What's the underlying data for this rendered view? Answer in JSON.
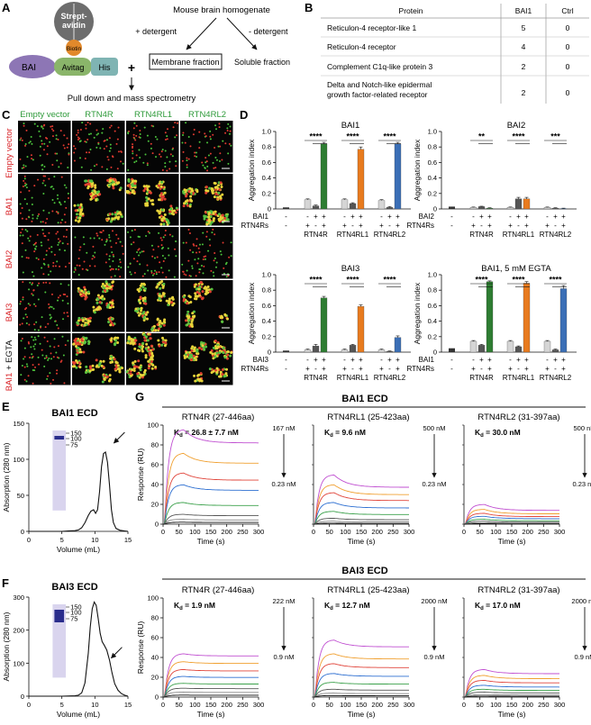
{
  "panel_letters": {
    "A": "A",
    "B": "B",
    "C": "C",
    "D": "D",
    "E": "E",
    "F": "F",
    "G": "G"
  },
  "panelA": {
    "streptavidin": "Strept-avidin",
    "biotin": "Biotin",
    "bai": "BAI",
    "avitag": "Avitag",
    "his": "His",
    "plus": "+",
    "homogenate": "Mouse brain homogenate",
    "plus_detergent": "+ detergent",
    "minus_detergent": "- detergent",
    "membrane": "Membrane fraction",
    "soluble": "Soluble fraction",
    "pulldown": "Pull down and mass spectrometry"
  },
  "panelB": {
    "headers": [
      "Protein",
      "BAI1",
      "Ctrl"
    ],
    "rows": [
      {
        "protein": "Reticulon-4 receptor-like 1",
        "bai1": "5",
        "ctrl": "0"
      },
      {
        "protein": "Reticulon-4 receptor",
        "bai1": "4",
        "ctrl": "0"
      },
      {
        "protein": "Complement C1q-like protein 3",
        "bai1": "2",
        "ctrl": "0"
      },
      {
        "protein_line1": "Delta and Notch-like epidermal",
        "protein_line2": "growth factor-related receptor",
        "bai1": "2",
        "ctrl": "0"
      }
    ]
  },
  "panelC": {
    "col_labels": [
      "Empty vector",
      "RTN4R",
      "RTN4RL1",
      "RTN4RL2"
    ],
    "row_labels": [
      "Empty vector",
      "BAI1",
      "BAI2",
      "BAI3"
    ],
    "last_row_red": "BAI1",
    "last_row_white": " + EGTA",
    "colors": {
      "red": "#d9252a",
      "green": "#2e9a3a"
    }
  },
  "panelD": {
    "ylabel": "Aggregation index",
    "groups": [
      "RTN4R",
      "RTN4RL1",
      "RTN4RL2"
    ],
    "rtn_row_label": "RTN4Rs",
    "colors": {
      "gray": "#d5d5d5",
      "dark": "#555555",
      "RTN4R": "#2e7d32",
      "RTN4RL1": "#e87b1e",
      "RTN4RL2": "#3b6fb6"
    },
    "chart_data": [
      {
        "type": "bar",
        "title": "BAI1",
        "row_label": "BAI1",
        "ylim": [
          0,
          1.0
        ],
        "yticks": [
          "0",
          "0.2",
          "0.4",
          "0.6",
          "0.8",
          "1.0"
        ],
        "control": {
          "value": 0.02,
          "error": 0.01
        },
        "groups": [
          {
            "name": "RTN4R",
            "values": [
              0.12,
              0.04,
              0.84
            ],
            "errors": [
              0.01,
              0.01,
              0.02
            ]
          },
          {
            "name": "RTN4RL1",
            "values": [
              0.12,
              0.07,
              0.77
            ],
            "errors": [
              0.01,
              0.01,
              0.03
            ]
          },
          {
            "name": "RTN4RL2",
            "values": [
              0.11,
              0.02,
              0.84
            ],
            "errors": [
              0.01,
              0.01,
              0.02
            ]
          }
        ],
        "significance": [
          "****",
          "****",
          "****"
        ]
      },
      {
        "type": "bar",
        "title": "BAI2",
        "row_label": "BAI2",
        "ylim": [
          0,
          1.0
        ],
        "yticks": [
          "0",
          "0.2",
          "0.4",
          "0.6",
          "0.8",
          "1.0"
        ],
        "control": {
          "value": 0.03,
          "error": 0.01
        },
        "groups": [
          {
            "name": "RTN4R",
            "values": [
              0.02,
              0.03,
              0.01
            ],
            "errors": [
              0.005,
              0.005,
              0.005
            ]
          },
          {
            "name": "RTN4RL1",
            "values": [
              0.02,
              0.13,
              0.13
            ],
            "errors": [
              0.005,
              0.02,
              0.02
            ]
          },
          {
            "name": "RTN4RL2",
            "values": [
              0.02,
              0.01,
              0.005
            ],
            "errors": [
              0.005,
              0.005,
              0.005
            ]
          }
        ],
        "significance": [
          "**",
          "****",
          "***"
        ]
      },
      {
        "type": "bar",
        "title": "BAI3",
        "row_label": "BAI3",
        "ylim": [
          0,
          1.0
        ],
        "yticks": [
          "0",
          "0.2",
          "0.4",
          "0.6",
          "0.8",
          "1.0"
        ],
        "control": {
          "value": 0.02,
          "error": 0.01
        },
        "groups": [
          {
            "name": "RTN4R",
            "values": [
              0.03,
              0.08,
              0.7
            ],
            "errors": [
              0.01,
              0.02,
              0.02
            ]
          },
          {
            "name": "RTN4RL1",
            "values": [
              0.03,
              0.09,
              0.59
            ],
            "errors": [
              0.01,
              0.01,
              0.02
            ]
          },
          {
            "name": "RTN4RL2",
            "values": [
              0.03,
              0.01,
              0.19
            ],
            "errors": [
              0.01,
              0.005,
              0.02
            ]
          }
        ],
        "significance": [
          "****",
          "****",
          "****"
        ]
      },
      {
        "type": "bar",
        "title": "BAI1, 5 mM EGTA",
        "row_label": "BAI1",
        "ylim": [
          0,
          1.0
        ],
        "yticks": [
          "0",
          "0.2",
          "0.4",
          "0.6",
          "0.8",
          "1.0"
        ],
        "control": {
          "value": 0.05,
          "error": 0.01
        },
        "groups": [
          {
            "name": "RTN4R",
            "values": [
              0.14,
              0.09,
              0.91
            ],
            "errors": [
              0.01,
              0.01,
              0.01
            ]
          },
          {
            "name": "RTN4RL1",
            "values": [
              0.14,
              0.07,
              0.89
            ],
            "errors": [
              0.01,
              0.01,
              0.02
            ]
          },
          {
            "name": "RTN4RL2",
            "values": [
              0.14,
              0.03,
              0.82
            ],
            "errors": [
              0.01,
              0.01,
              0.04
            ]
          }
        ],
        "significance": [
          "****",
          "****",
          "****"
        ]
      }
    ]
  },
  "panelE": {
    "title": "BAI1 ECD",
    "ylabel": "Absorption (280 nm)",
    "xlabel": "Volume (mL)",
    "markers": [
      "150",
      "100",
      "75"
    ],
    "chart_data": {
      "type": "line",
      "xlim": [
        0,
        15
      ],
      "ylim": [
        0,
        150
      ],
      "xticks": [
        "0",
        "5",
        "10",
        "15"
      ],
      "yticks": [
        "0",
        "50",
        "100",
        "150"
      ],
      "x": [
        0,
        1,
        2,
        3,
        4,
        5,
        6,
        7,
        7.5,
        8,
        8.5,
        9,
        9.4,
        9.8,
        10.1,
        10.4,
        10.7,
        11.0,
        11.3,
        11.6,
        11.9,
        12.2,
        12.5,
        12.8,
        13.2,
        13.8,
        14.5,
        15
      ],
      "y": [
        0,
        0,
        0,
        0,
        0,
        0,
        0.5,
        1,
        2,
        5,
        12,
        22,
        28,
        30,
        25,
        30,
        55,
        90,
        108,
        110,
        96,
        65,
        30,
        12,
        4,
        1.5,
        0.5,
        0
      ]
    }
  },
  "panelF": {
    "title": "BAI3 ECD",
    "ylabel": "Absorption (280 nm)",
    "xlabel": "Volume (mL)",
    "markers": [
      "150",
      "100",
      "75"
    ],
    "chart_data": {
      "type": "line",
      "xlim": [
        0,
        15
      ],
      "ylim": [
        0,
        300
      ],
      "xticks": [
        "0",
        "5",
        "10",
        "15"
      ],
      "yticks": [
        "0",
        "100",
        "200",
        "300"
      ],
      "x": [
        0,
        1,
        2,
        3,
        4,
        5,
        6,
        7,
        7.5,
        8,
        8.5,
        9,
        9.3,
        9.6,
        9.9,
        10.2,
        10.5,
        10.8,
        11.1,
        11.4,
        11.8,
        12.2,
        12.6,
        13.0,
        13.5,
        14,
        14.5,
        15
      ],
      "y": [
        0,
        0,
        0,
        0,
        0,
        0,
        0.5,
        1,
        3,
        10,
        40,
        130,
        210,
        265,
        285,
        275,
        235,
        190,
        165,
        155,
        140,
        110,
        70,
        38,
        18,
        8,
        3,
        0
      ]
    }
  },
  "panelG": {
    "bai1_header": "BAI1 ECD",
    "bai3_header": "BAI3 ECD",
    "ylabel": "Response (RU)",
    "xlabel": "Time (s)",
    "kd_prefix": "K",
    "kd_sub": "d",
    "curve_colors": [
      "#c04fd1",
      "#f0a030",
      "#e0443a",
      "#2d6fd1",
      "#3aa04a",
      "#555555",
      "#888888",
      "#111111"
    ],
    "chart_data": [
      {
        "type": "line",
        "title": "RTN4R (27-446aa)",
        "kd": " = 26.8 ± 7.7 nM",
        "conc_high": "167 nM",
        "conc_low": "0.23 nM",
        "xlim": [
          0,
          300
        ],
        "ylim": [
          0,
          100
        ],
        "xticks": [
          "0",
          "50",
          "100",
          "150",
          "200",
          "250",
          "300"
        ],
        "yticks": [
          "0",
          "20",
          "40",
          "60",
          "80",
          "100"
        ],
        "plateaus": [
          96,
          72,
          52,
          40,
          22,
          10,
          5,
          2
        ],
        "dissoc_frac": 0.14
      },
      {
        "type": "line",
        "title": "RTN4RL1 (25-423aa)",
        "kd": " = 9.6 nM",
        "conc_high": "500 nM",
        "conc_low": "0.23 nM",
        "xlim": [
          0,
          300
        ],
        "ylim": [
          0,
          100
        ],
        "xticks": [
          "0",
          "50",
          "100",
          "150",
          "200",
          "250",
          "300"
        ],
        "plateaus": [
          50,
          40,
          32,
          22,
          13,
          6,
          3,
          1
        ],
        "dissoc_frac": 0.25
      },
      {
        "type": "line",
        "title": "RTN4RL2 (31-397aa)",
        "kd": " = 30.0 nM",
        "conc_high": "500 nM",
        "conc_low": "0.23 nM",
        "xlim": [
          0,
          300
        ],
        "ylim": [
          0,
          100
        ],
        "xticks": [
          "0",
          "50",
          "100",
          "150",
          "200",
          "250",
          "300"
        ],
        "plateaus": [
          20,
          15,
          11,
          8,
          5,
          3,
          1.5,
          0.5
        ],
        "dissoc_frac": 0.3
      },
      {
        "type": "line",
        "title": "RTN4R (27-446aa)",
        "kd": " = 1.9 nM",
        "conc_high": "222 nM",
        "conc_low": "0.9 nM",
        "xlim": [
          0,
          300
        ],
        "ylim": [
          0,
          100
        ],
        "xticks": [
          "0",
          "50",
          "100",
          "150",
          "200",
          "250",
          "300"
        ],
        "yticks": [
          "0",
          "20",
          "40",
          "60",
          "80",
          "100"
        ],
        "plateaus": [
          44,
          36,
          28,
          21,
          14,
          9,
          5,
          2
        ],
        "dissoc_frac": 0.05
      },
      {
        "type": "line",
        "title": "RTN4RL1 (25-423aa)",
        "kd": " = 12.7 nM",
        "conc_high": "2000 nM",
        "conc_low": "0.9 nM",
        "xlim": [
          0,
          300
        ],
        "ylim": [
          0,
          100
        ],
        "xticks": [
          "0",
          "50",
          "100",
          "150",
          "200",
          "250",
          "300"
        ],
        "plateaus": [
          58,
          44,
          34,
          24,
          15,
          8,
          4,
          1.5
        ],
        "dissoc_frac": 0.12
      },
      {
        "type": "line",
        "title": "RTN4RL2 (31-397aa)",
        "kd": " = 17.0 nM",
        "conc_high": "2000 nM",
        "conc_low": "0.9 nM",
        "xlim": [
          0,
          300
        ],
        "ylim": [
          0,
          100
        ],
        "xticks": [
          "0",
          "50",
          "100",
          "150",
          "200",
          "250",
          "300"
        ],
        "plateaus": [
          28,
          22,
          17,
          12,
          8,
          5,
          2.5,
          1
        ],
        "dissoc_frac": 0.15
      }
    ]
  }
}
